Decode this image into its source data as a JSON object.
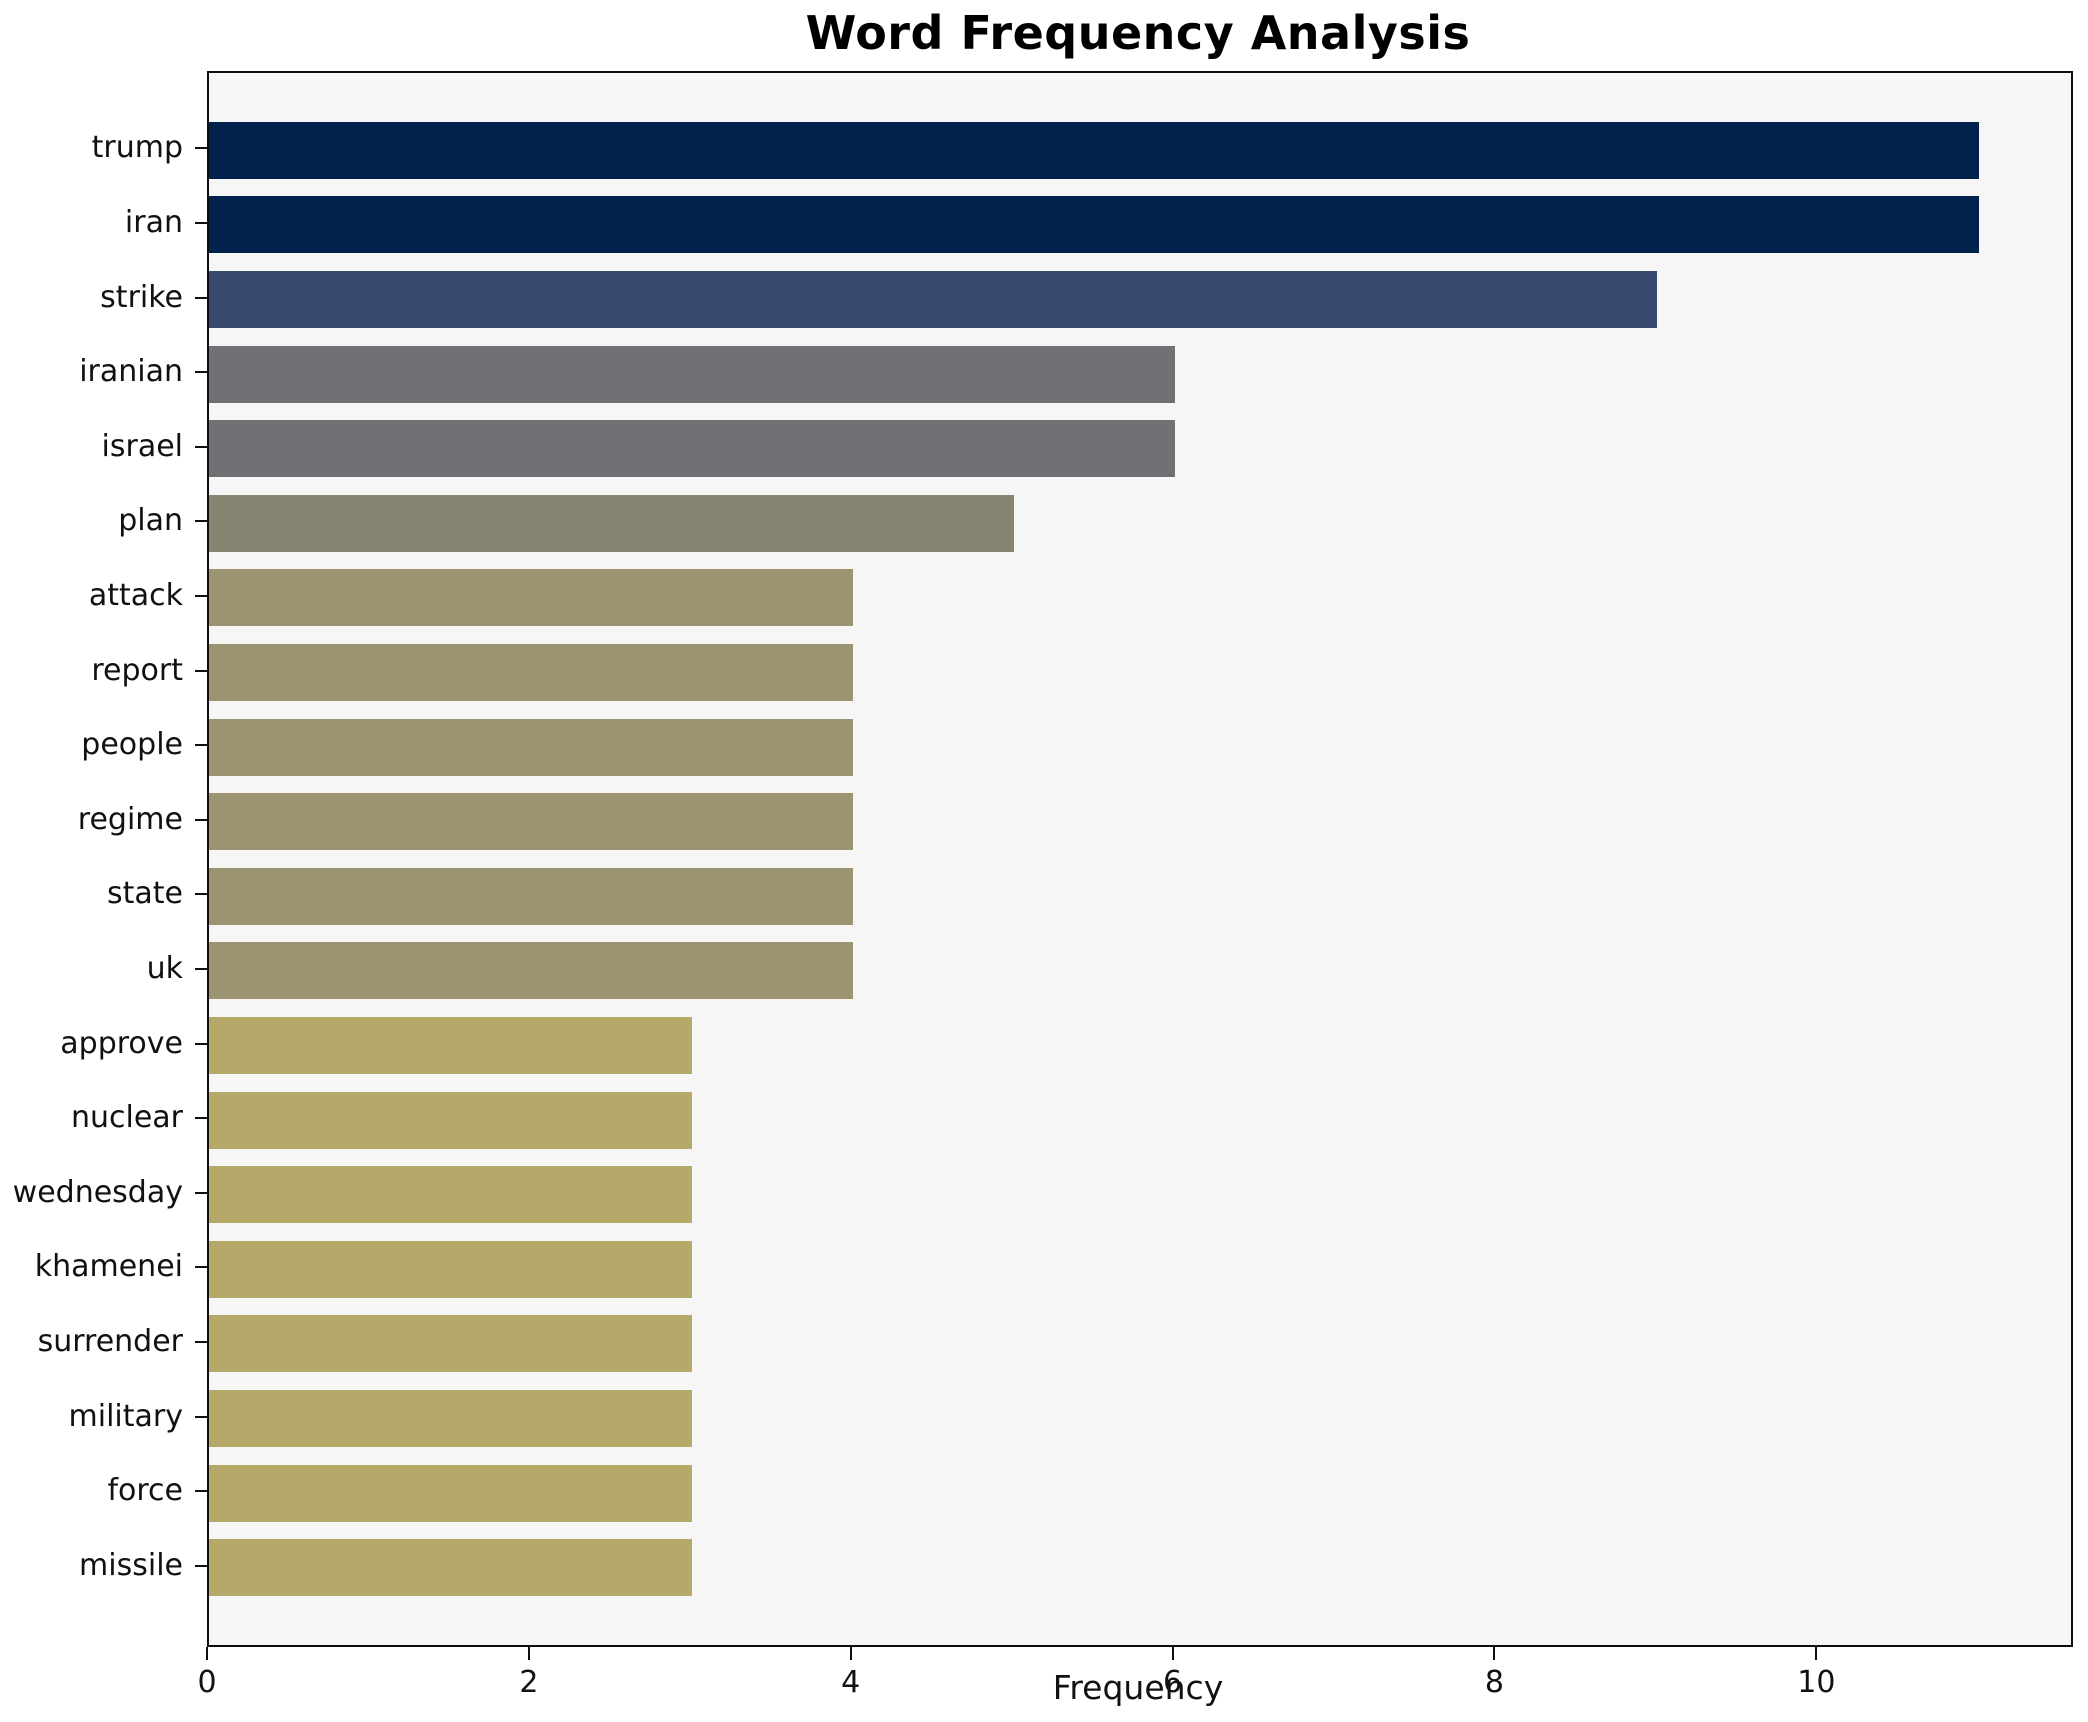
{
  "title": "Word Frequency Analysis",
  "chart_data": {
    "type": "bar",
    "orientation": "horizontal",
    "title": "Word Frequency Analysis",
    "xlabel": "Frequency",
    "ylabel": "",
    "categories": [
      "trump",
      "iran",
      "strike",
      "iranian",
      "israel",
      "plan",
      "attack",
      "report",
      "people",
      "regime",
      "state",
      "uk",
      "approve",
      "nuclear",
      "wednesday",
      "khamenei",
      "surrender",
      "military",
      "force",
      "missile"
    ],
    "values": [
      11,
      11,
      9,
      6,
      6,
      5,
      4,
      4,
      4,
      4,
      4,
      4,
      3,
      3,
      3,
      3,
      3,
      3,
      3,
      3
    ],
    "bar_colors": [
      "#01224d",
      "#01224d",
      "#374a6e",
      "#717175",
      "#717175",
      "#878571",
      "#9c9371",
      "#9c9371",
      "#9c9371",
      "#9c9371",
      "#9c9371",
      "#9c9371",
      "#b5a96a",
      "#b5a96a",
      "#b5a96a",
      "#b5a96a",
      "#b5a96a",
      "#b5a96a",
      "#b5a96a",
      "#b5a96a"
    ],
    "xticks": [
      0,
      2,
      4,
      6,
      8,
      10
    ],
    "xlim": [
      0,
      11.57
    ],
    "grid": false,
    "legend": null,
    "plot_background": "#f6f6f7",
    "figure_background": "#ffffff",
    "spine_color": "#0f0f0f",
    "title_color": "#000000",
    "tick_label_color": "#111111"
  }
}
